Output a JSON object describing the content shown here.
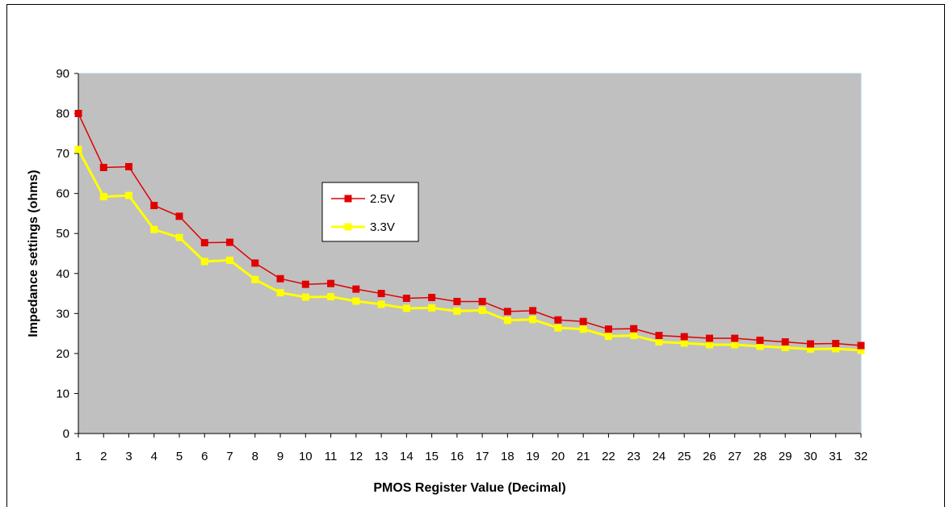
{
  "chart_data": {
    "type": "line",
    "title": "",
    "xlabel": "PMOS Register Value (Decimal)",
    "ylabel": "Impedance settings (ohms)",
    "ylim": [
      0,
      90
    ],
    "yticks": [
      "0",
      "10",
      "20",
      "30",
      "40",
      "50",
      "60",
      "70",
      "80",
      "90"
    ],
    "categories": [
      "1",
      "2",
      "3",
      "4",
      "5",
      "6",
      "7",
      "8",
      "9",
      "10",
      "11",
      "12",
      "13",
      "14",
      "15",
      "16",
      "17",
      "18",
      "19",
      "20",
      "21",
      "22",
      "23",
      "24",
      "25",
      "26",
      "27",
      "28",
      "29",
      "30",
      "31",
      "32"
    ],
    "plot_background": "#c0c0c0",
    "grid": false,
    "legend_position": "center-left",
    "series": [
      {
        "name": "2.5V",
        "color": "#e00000",
        "values": [
          80,
          66.5,
          66.7,
          57,
          54.3,
          47.7,
          47.8,
          42.6,
          38.7,
          37.3,
          37.5,
          36.1,
          35,
          33.8,
          34,
          33,
          33,
          30.5,
          30.7,
          28.4,
          28,
          26.1,
          26.2,
          24.5,
          24.2,
          23.8,
          23.8,
          23.3,
          22.9,
          22.4,
          22.5,
          22
        ]
      },
      {
        "name": "3.3V",
        "color": "#ffff00",
        "values": [
          71,
          59.2,
          59.5,
          51,
          49,
          43,
          43.3,
          38.5,
          35.2,
          34.1,
          34.2,
          33.1,
          32.3,
          31.3,
          31.4,
          30.6,
          30.8,
          28.3,
          28.5,
          26.4,
          26.1,
          24.3,
          24.5,
          22.9,
          22.6,
          22.2,
          22.2,
          21.8,
          21.5,
          21.1,
          21.2,
          20.8
        ]
      }
    ]
  }
}
